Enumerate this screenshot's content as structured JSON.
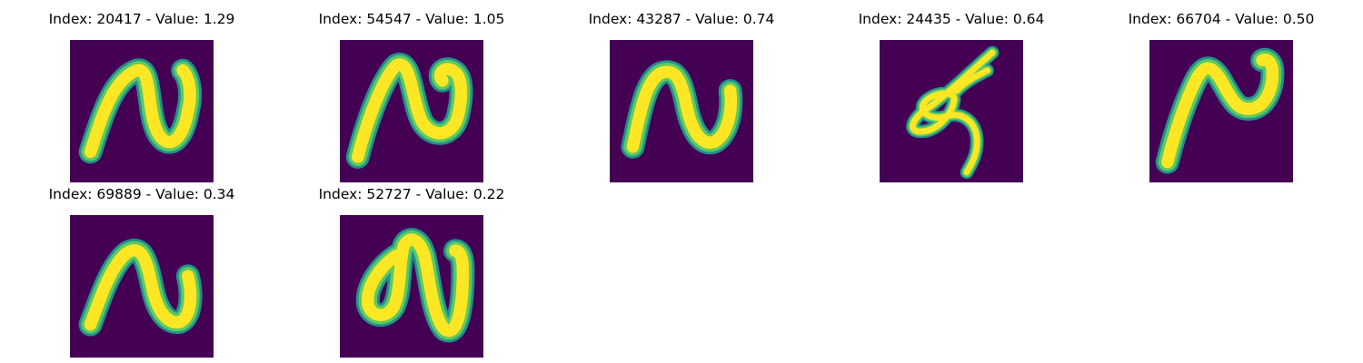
{
  "colors": {
    "background": "#440154",
    "stroke_edge": "#21918c",
    "stroke_mid": "#5ec962",
    "stroke_core": "#fde725"
  },
  "panels": [
    {
      "title": "Index: 20417 - Value: 1.29",
      "index": 20417,
      "value": 1.29
    },
    {
      "title": "Index: 54547 - Value: 1.05",
      "index": 54547,
      "value": 1.05
    },
    {
      "title": "Index: 43287 - Value: 0.74",
      "index": 43287,
      "value": 0.74
    },
    {
      "title": "Index: 24435 - Value: 0.64",
      "index": 24435,
      "value": 0.64
    },
    {
      "title": "Index: 66704 - Value: 0.50",
      "index": 66704,
      "value": 0.5
    },
    {
      "title": "Index: 69889 - Value: 0.34",
      "index": 69889,
      "value": 0.34
    },
    {
      "title": "Index: 52727 - Value: 0.22",
      "index": 52727,
      "value": 0.22
    }
  ]
}
